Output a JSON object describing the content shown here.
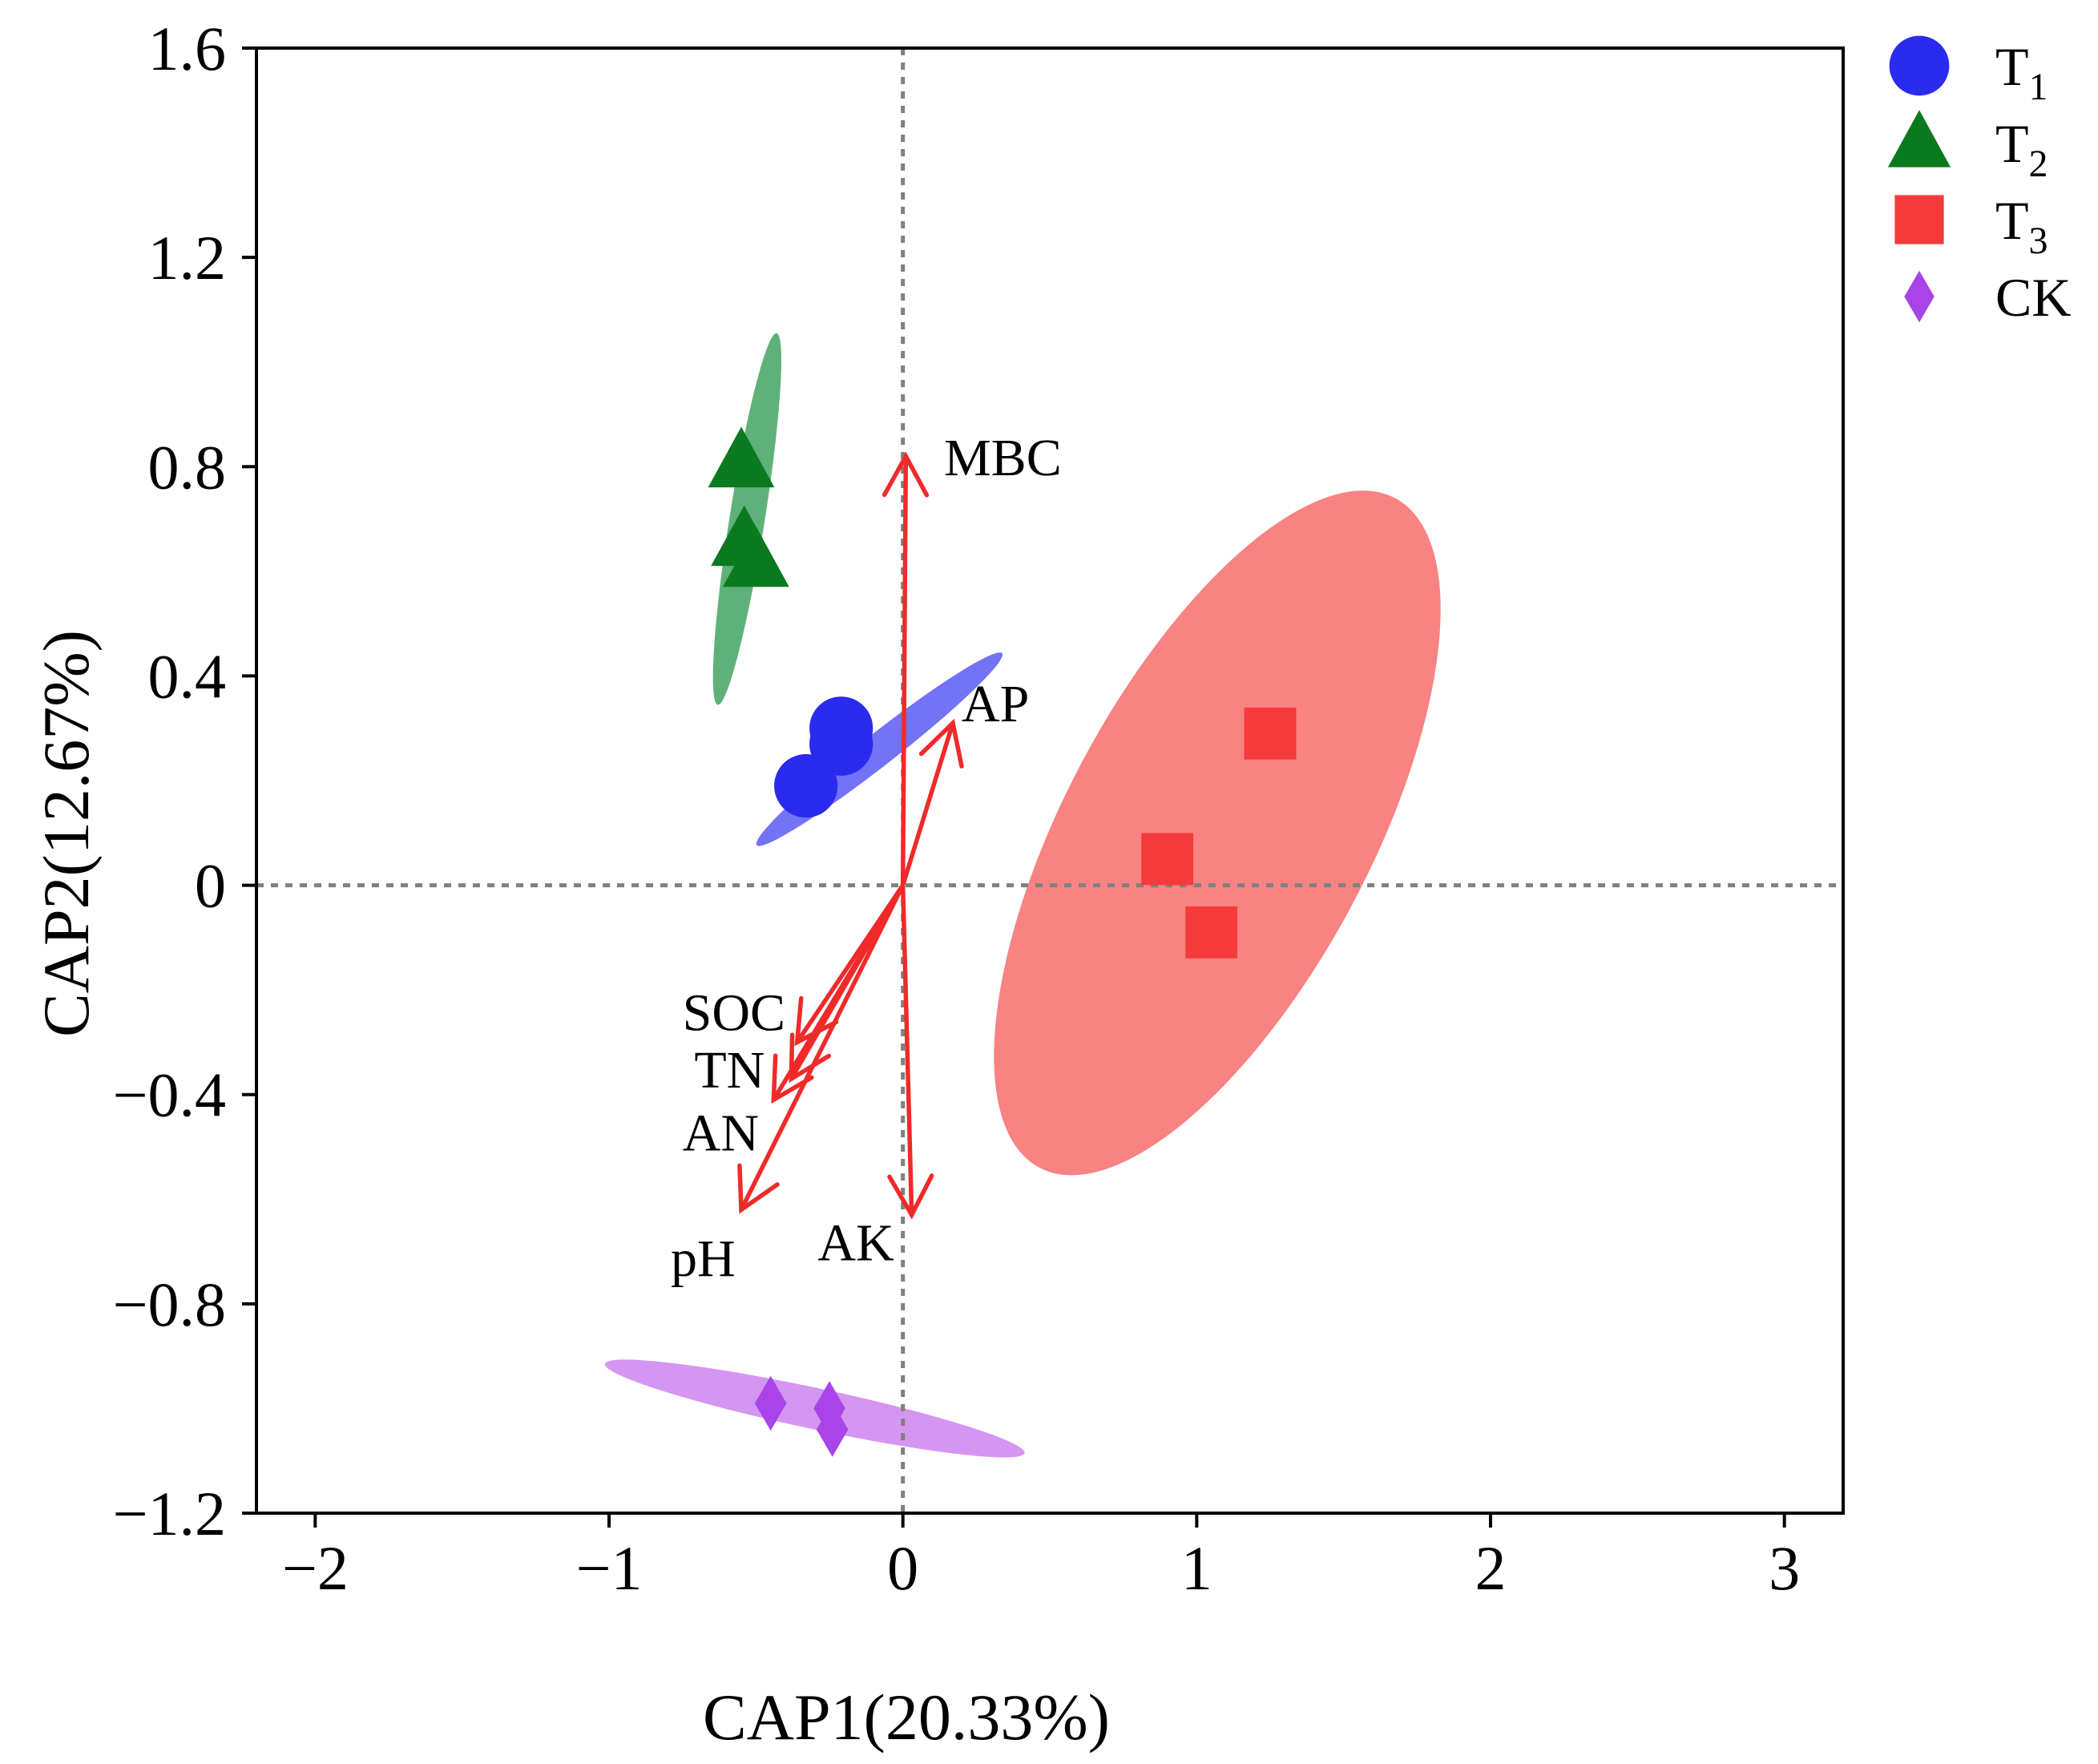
{
  "chart_data": {
    "type": "scatter",
    "title": "",
    "xlabel": "CAP1(20.33%)",
    "ylabel": "CAP2(12.67%)",
    "xlim": [
      -2.2,
      3.2
    ],
    "ylim": [
      -1.2,
      1.6
    ],
    "xticks": [
      -2,
      -1,
      0,
      1,
      2,
      3
    ],
    "xtick_labels": [
      "−2",
      "−1",
      "0",
      "1",
      "2",
      "3"
    ],
    "yticks": [
      -1.2,
      -0.8,
      -0.4,
      0,
      0.4,
      0.8,
      1.2,
      1.6
    ],
    "ytick_labels": [
      "−1.2",
      "−0.8",
      "−0.4",
      "0",
      "0.4",
      "0.8",
      "1.2",
      "1.6"
    ],
    "reference_lines": {
      "x": 0,
      "y": 0,
      "style": "dotted",
      "color": "#808080"
    },
    "legend_position": "outside-top-right",
    "series": [
      {
        "name": "T",
        "name_sub": "1",
        "marker": "circle",
        "color": "#2b2bf0",
        "ellipse_color": "#7373f5",
        "points": [
          [
            -0.21,
            0.3
          ],
          [
            -0.21,
            0.27
          ],
          [
            -0.33,
            0.19
          ]
        ],
        "ellipse": {
          "cx": -0.08,
          "cy": 0.26,
          "semi_major": 0.53,
          "semi_minor": 0.055,
          "angle_deg": 38
        }
      },
      {
        "name": "T",
        "name_sub": "2",
        "marker": "triangle",
        "color": "#0b7a1e",
        "ellipse_color": "#5eb279",
        "points": [
          [
            -0.55,
            0.81
          ],
          [
            -0.54,
            0.66
          ],
          [
            -0.5,
            0.62
          ]
        ],
        "ellipse": {
          "cx": -0.53,
          "cy": 0.7,
          "semi_major": 0.64,
          "semi_minor": 0.06,
          "angle_deg": 81
        }
      },
      {
        "name": "T",
        "name_sub": "3",
        "marker": "square",
        "color": "#f43a3a",
        "ellipse_color": "#f98282",
        "points": [
          [
            1.25,
            0.29
          ],
          [
            0.9,
            0.05
          ],
          [
            1.05,
            -0.09
          ]
        ],
        "ellipse": {
          "cx": 1.07,
          "cy": 0.1,
          "semi_major": 1.29,
          "semi_minor": 0.52,
          "angle_deg": 62
        }
      },
      {
        "name": "CK",
        "name_sub": "",
        "marker": "diamond",
        "color": "#a844e8",
        "ellipse_color": "#d596f2",
        "points": [
          [
            -0.45,
            -0.99
          ],
          [
            -0.25,
            -1.0
          ],
          [
            -0.24,
            -1.04
          ]
        ],
        "ellipse": {
          "cx": -0.3,
          "cy": -1.0,
          "semi_major": 0.73,
          "semi_minor": 0.07,
          "angle_deg": -12
        }
      }
    ],
    "arrows": {
      "color": "#f02a2a",
      "origin": [
        0,
        0
      ],
      "items": [
        {
          "label": "MBC",
          "x": 0.01,
          "y": 0.82,
          "label_x": 0.14,
          "label_y": 0.82,
          "anchor": "start"
        },
        {
          "label": "AP",
          "x": 0.17,
          "y": 0.31,
          "label_x": 0.2,
          "label_y": 0.35,
          "anchor": "start"
        },
        {
          "label": "SOC",
          "x": -0.36,
          "y": -0.3,
          "label_x": -0.4,
          "label_y": -0.24,
          "anchor": "end"
        },
        {
          "label": "TN",
          "x": -0.38,
          "y": -0.37,
          "label_x": -0.47,
          "label_y": -0.35,
          "anchor": "end"
        },
        {
          "label": "AN",
          "x": -0.44,
          "y": -0.41,
          "label_x": -0.49,
          "label_y": -0.47,
          "anchor": "end"
        },
        {
          "label": "pH",
          "x": -0.55,
          "y": -0.62,
          "label_x": -0.57,
          "label_y": -0.71,
          "anchor": "end"
        },
        {
          "label": "AK",
          "x": 0.03,
          "y": -0.63,
          "label_x": -0.03,
          "label_y": -0.68,
          "anchor": "end"
        }
      ]
    }
  }
}
